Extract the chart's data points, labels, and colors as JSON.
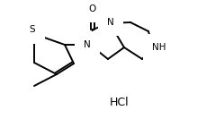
{
  "background_color": "#ffffff",
  "line_color": "#000000",
  "line_width": 1.4,
  "hcl_text": "HCl",
  "hcl_fontsize": 9,
  "label_N1": "N",
  "label_N2": "N",
  "label_NH": "NH",
  "label_S": "S",
  "label_O": "O",
  "methyl_line": true
}
